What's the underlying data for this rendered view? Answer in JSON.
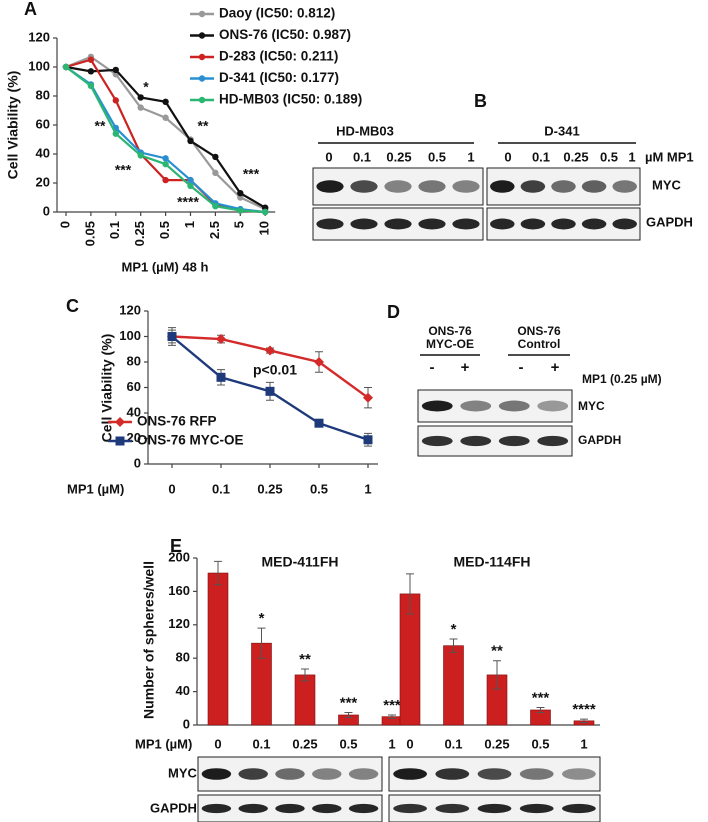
{
  "chart_data": [
    {
      "type": "line",
      "label": "A",
      "ylabel": "Cell Viability (%)",
      "xlabel": "MP1 (µM) 48 h",
      "categories": [
        "0",
        "0.05",
        "0.1",
        "0.25",
        "0.5",
        "1",
        "2.5",
        "5",
        "10"
      ],
      "ylim": [
        0,
        120
      ],
      "yticks": [
        0,
        20,
        40,
        60,
        80,
        100,
        120
      ],
      "series": [
        {
          "name": "Daoy (IC50: 0.812)",
          "color": "#999999",
          "values": [
            100,
            107,
            95,
            72,
            65,
            50,
            27,
            10,
            2
          ]
        },
        {
          "name": "ONS-76 (IC50: 0.987)",
          "color": "#111111",
          "values": [
            100,
            97,
            98,
            79,
            76,
            49,
            38,
            13,
            3
          ]
        },
        {
          "name": "D-283 (IC50: 0.211)",
          "color": "#cc2222",
          "values": [
            100,
            105,
            77,
            40,
            22,
            22,
            5,
            1,
            0
          ]
        },
        {
          "name": "D-341 (IC50: 0.177)",
          "color": "#2a8fd0",
          "values": [
            100,
            88,
            58,
            41,
            37,
            22,
            6,
            2,
            0
          ]
        },
        {
          "name": "HD-MB03 (IC50: 0.189)",
          "color": "#2bb673",
          "values": [
            100,
            87,
            54,
            39,
            33,
            18,
            4,
            1,
            0
          ]
        }
      ],
      "annotations": [
        "*",
        "**",
        "**",
        "***",
        "***",
        "****"
      ]
    },
    {
      "type": "line",
      "label": "C",
      "ylabel": "Cell Viability (%)",
      "xlabel": "MP1 (µM)",
      "categories": [
        "0",
        "0.1",
        "0.25",
        "0.5",
        "1"
      ],
      "ylim": [
        0,
        120
      ],
      "yticks": [
        0,
        20,
        40,
        60,
        80,
        100,
        120
      ],
      "series": [
        {
          "name": "ONS-76 RFP",
          "color": "#d42a2a",
          "marker": "diamond",
          "values": [
            100,
            98,
            89,
            80,
            52
          ],
          "errors": [
            5,
            3,
            2,
            8,
            8
          ]
        },
        {
          "name": "ONS-76 MYC-OE",
          "color": "#1f3a7a",
          "marker": "square",
          "values": [
            100,
            68,
            57,
            32,
            19
          ],
          "errors": [
            7,
            6,
            7,
            2,
            5
          ]
        }
      ],
      "annotations": [
        "p<0.01"
      ]
    },
    {
      "type": "bar",
      "label": "E",
      "ylabel": "Number of spheres/well",
      "xlabel": "MP1 (µM)",
      "ylim": [
        0,
        200
      ],
      "yticks": [
        0,
        40,
        80,
        120,
        160,
        200
      ],
      "color": "#cc1f1f",
      "groups": [
        {
          "title": "MED-411FH",
          "categories": [
            "0",
            "0.1",
            "0.25",
            "0.5",
            "1"
          ],
          "values": [
            182,
            98,
            60,
            12,
            10
          ],
          "errors": [
            14,
            18,
            7,
            3,
            2
          ],
          "annotations": [
            "*",
            "**",
            "***",
            "***"
          ]
        },
        {
          "title": "MED-114FH",
          "categories": [
            "0",
            "0.1",
            "0.25",
            "0.5",
            "1"
          ],
          "values": [
            157,
            95,
            60,
            18,
            5
          ],
          "errors": [
            24,
            8,
            17,
            3,
            2
          ],
          "annotations": [
            "*",
            "**",
            "***",
            "****"
          ]
        }
      ]
    }
  ],
  "blots": {
    "B": {
      "label": "B",
      "groups": [
        "HD-MB03",
        "D-341"
      ],
      "lanes": [
        [
          "0",
          "0.1",
          "0.25",
          "0.5",
          "1"
        ],
        [
          "0",
          "0.1",
          "0.25",
          "0.5",
          "1"
        ]
      ],
      "unit": "µM MP1",
      "rows": [
        "MYC",
        "GAPDH"
      ]
    },
    "D": {
      "label": "D",
      "groups": [
        [
          "ONS-76",
          "MYC-OE"
        ],
        [
          "ONS-76",
          "Control"
        ]
      ],
      "lanes": [
        [
          "-",
          "+"
        ],
        [
          "-",
          "+"
        ]
      ],
      "unit": "MP1 (0.25 µM)",
      "rows": [
        "MYC",
        "GAPDH"
      ]
    },
    "E": {
      "rows": [
        "MYC",
        "GAPDH"
      ]
    }
  }
}
